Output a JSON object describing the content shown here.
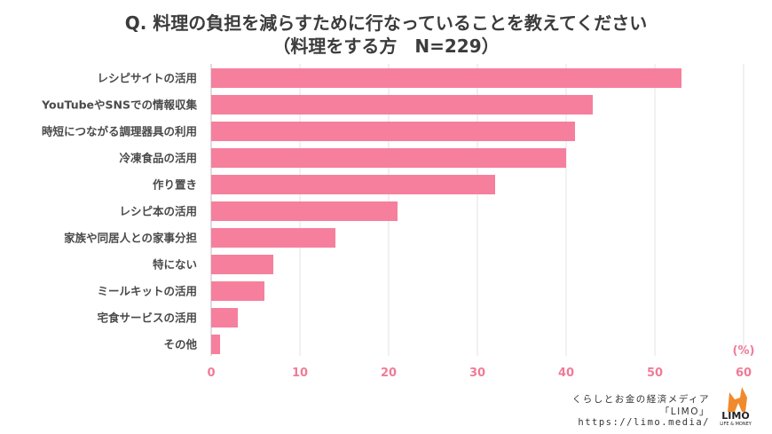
{
  "chart_data": {
    "type": "bar",
    "orientation": "horizontal",
    "title": "Q. 料理の負担を減らすために行なっていることを教えてください",
    "subtitle": "（料理をする方　N=229）",
    "unit_label": "(%)",
    "xlim": [
      0,
      60
    ],
    "ticks": [
      "0",
      "10",
      "20",
      "30",
      "40",
      "50",
      "60"
    ],
    "grid": true,
    "bar_color": "#f67f9d",
    "categories": [
      "レシピサイトの活用",
      "YouTubeやSNSでの情報収集",
      "時短につながる調理器具の利用",
      "冷凍食品の活用",
      "作り置き",
      "レシピ本の活用",
      "家族や同居人との家事分担",
      "特にない",
      "ミールキットの活用",
      "宅食サービスの活用",
      "その他"
    ],
    "values": [
      53,
      43,
      41,
      40,
      32,
      21,
      14,
      7,
      6,
      3,
      1
    ]
  },
  "footer": {
    "line1": "くらしとお金の経済メディア",
    "line2": "「LIMO」",
    "url": "https://limo.media/"
  },
  "logo": {
    "name": "LIMO",
    "tagline": "LIFE & MONEY",
    "color": "#f08a2c"
  }
}
